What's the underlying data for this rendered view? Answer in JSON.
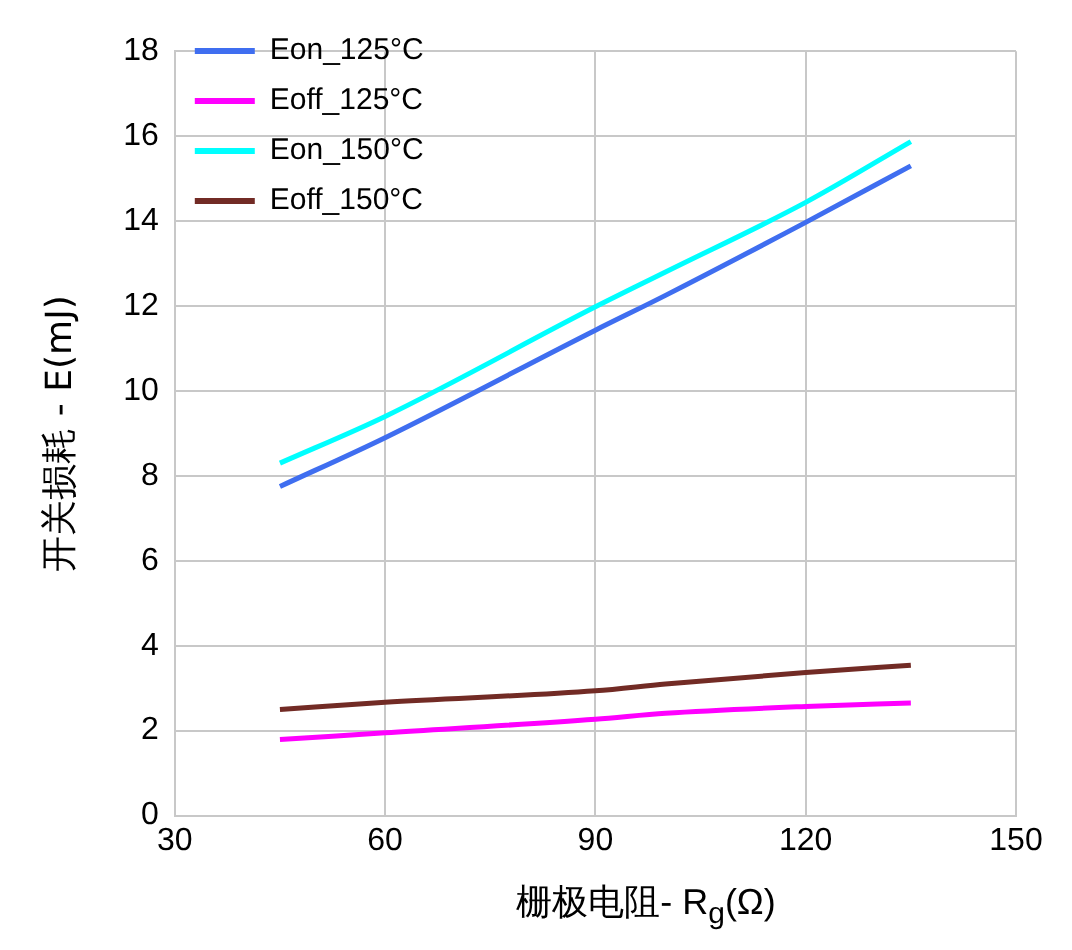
{
  "chart_data": {
    "type": "line",
    "xlabel": "栅极电阻- R$_{g}$(Ω)",
    "ylabel": "开关损耗 - E(mJ)",
    "xlim": [
      30,
      150
    ],
    "xticks": [
      30,
      60,
      90,
      120,
      150
    ],
    "ylim": [
      0,
      18
    ],
    "yticks": [
      0,
      2,
      4,
      6,
      8,
      10,
      12,
      14,
      16,
      18
    ],
    "grid": true,
    "legend": "top left",
    "marker": "none",
    "line_style": "solid",
    "x": [
      45,
      60,
      90,
      100,
      120,
      135
    ],
    "series": [
      {
        "name": "Eon_125°C",
        "color": "#3f6ef0",
        "values": [
          7.75,
          8.9,
          11.43,
          12.25,
          13.97,
          15.3
        ]
      },
      {
        "name": "Eoff_125°C",
        "color": "#ff00ff",
        "values": [
          1.79,
          1.95,
          2.27,
          2.41,
          2.57,
          2.65
        ]
      },
      {
        "name": "Eon_150°C",
        "color": "#00ffff",
        "values": [
          8.3,
          9.4,
          11.98,
          12.8,
          14.44,
          15.87
        ]
      },
      {
        "name": "Eoff_150°C",
        "color": "#722b25",
        "values": [
          2.5,
          2.67,
          2.94,
          3.1,
          3.37,
          3.54
        ]
      }
    ]
  }
}
